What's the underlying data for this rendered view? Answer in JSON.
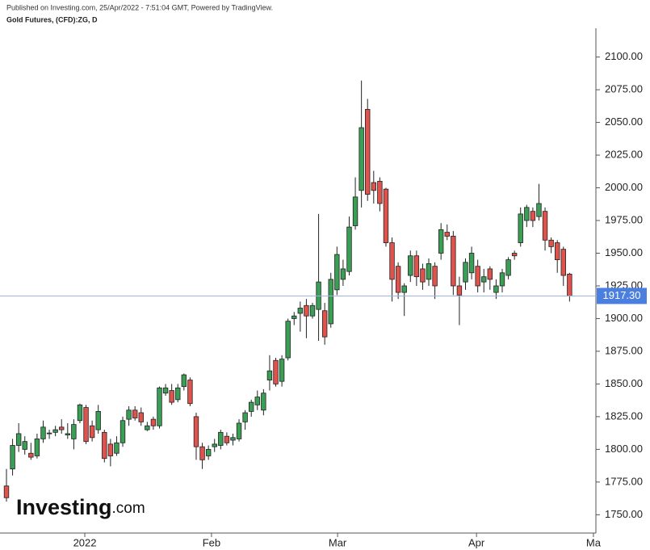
{
  "header": {
    "published": "Published on Investing.com, 25/Apr/2022 - 7:51:04 GMT, Powered by TradingView.",
    "instrument": "Gold Futures, (CFD):ZG, D"
  },
  "logo": {
    "brand": "Investing",
    "suffix": ".com"
  },
  "chart_data": {
    "type": "candlestick",
    "open": [
      1772,
      1785,
      1803,
      1800,
      1797,
      1795,
      1808,
      1812,
      1813,
      1817,
      1811,
      1808,
      1822,
      1832,
      1818,
      1815,
      1813,
      1804,
      1797,
      1805,
      1823,
      1830,
      1828,
      1815,
      1823,
      1818,
      1843,
      1845,
      1838,
      1848,
      1853,
      1825,
      1802,
      1795,
      1802,
      1803,
      1810,
      1807,
      1808,
      1821,
      1829,
      1834,
      1830,
      1853,
      1868,
      1852,
      1870,
      1900,
      1904,
      1910,
      1902,
      1907,
      1906,
      1896,
      1922,
      1930,
      1936,
      1971,
      1998,
      2060,
      2004,
      2005,
      1999,
      1958,
      1940,
      1920,
      1933,
      1948,
      1938,
      1930,
      1940,
      1950,
      1966,
      1963,
      1925,
      1928,
      1935,
      1940,
      1928,
      1938,
      1920,
      1925,
      1933,
      1950,
      1958,
      1975,
      1982,
      1978,
      1982,
      1960,
      1958,
      1953,
      1934
    ],
    "high": [
      1785,
      1808,
      1820,
      1810,
      1805,
      1812,
      1822,
      1815,
      1818,
      1823,
      1820,
      1823,
      1835,
      1834,
      1822,
      1834,
      1815,
      1808,
      1810,
      1825,
      1833,
      1833,
      1832,
      1821,
      1825,
      1848,
      1850,
      1850,
      1850,
      1858,
      1855,
      1828,
      1805,
      1803,
      1808,
      1815,
      1813,
      1812,
      1823,
      1830,
      1838,
      1845,
      1846,
      1872,
      1870,
      1872,
      1900,
      1905,
      1913,
      1915,
      1912,
      1980,
      1912,
      1935,
      1955,
      1945,
      1978,
      2008,
      2082,
      2068,
      2013,
      2008,
      2000,
      1962,
      1943,
      1927,
      1952,
      1952,
      1942,
      1946,
      1943,
      1973,
      1972,
      1967,
      1932,
      1946,
      1955,
      1945,
      1938,
      1940,
      1930,
      1938,
      1947,
      1952,
      1985,
      1987,
      1985,
      2003,
      1985,
      1962,
      1960,
      1955,
      1935
    ],
    "low": [
      1760,
      1780,
      1798,
      1796,
      1792,
      1793,
      1805,
      1808,
      1810,
      1812,
      1808,
      1800,
      1820,
      1804,
      1806,
      1812,
      1790,
      1787,
      1795,
      1802,
      1818,
      1822,
      1818,
      1814,
      1815,
      1816,
      1841,
      1834,
      1836,
      1845,
      1833,
      1792,
      1785,
      1792,
      1798,
      1800,
      1803,
      1803,
      1806,
      1815,
      1825,
      1830,
      1826,
      1845,
      1848,
      1848,
      1868,
      1895,
      1890,
      1885,
      1900,
      1883,
      1880,
      1893,
      1918,
      1925,
      1933,
      1968,
      1985,
      1990,
      1988,
      1982,
      1955,
      1913,
      1915,
      1902,
      1928,
      1925,
      1922,
      1925,
      1915,
      1945,
      1960,
      1918,
      1895,
      1922,
      1930,
      1920,
      1920,
      1922,
      1915,
      1920,
      1930,
      1945,
      1955,
      1970,
      1970,
      1975,
      1952,
      1950,
      1935,
      1925,
      1913
    ],
    "close": [
      1763,
      1803,
      1812,
      1806,
      1794,
      1808,
      1817,
      1812.5,
      1815,
      1815,
      1812,
      1819,
      1834,
      1806,
      1809,
      1829,
      1793,
      1795,
      1805,
      1822,
      1830,
      1824,
      1821,
      1818,
      1818,
      1847,
      1847,
      1836,
      1847,
      1857,
      1835,
      1802,
      1792,
      1800,
      1804,
      1813,
      1805,
      1809,
      1820,
      1828,
      1836,
      1840,
      1843,
      1860,
      1850,
      1869,
      1898,
      1902,
      1908,
      1902,
      1910,
      1928,
      1886,
      1930,
      1949,
      1938,
      1970,
      1993,
      2046,
      1995,
      1998,
      1988,
      1958,
      1930,
      1920,
      1925,
      1948,
      1932,
      1928,
      1942,
      1925,
      1968,
      1963,
      1925,
      1918,
      1943,
      1950,
      1925,
      1932,
      1930,
      1925,
      1935,
      1945,
      1948,
      1980,
      1985,
      1975,
      1988,
      1960,
      1955,
      1945,
      1933,
      1917.3
    ],
    "up_color": "#3a9e55",
    "down_color": "#e0534c",
    "ylim": [
      1736,
      2122
    ],
    "yticks": [
      {
        "value": 1750,
        "label": "1750.00"
      },
      {
        "value": 1775,
        "label": "1775.00"
      },
      {
        "value": 1800,
        "label": "1800.00"
      },
      {
        "value": 1825,
        "label": "1825.00"
      },
      {
        "value": 1850,
        "label": "1850.00"
      },
      {
        "value": 1875,
        "label": "1875.00"
      },
      {
        "value": 1900,
        "label": "1900.00"
      },
      {
        "value": 1925,
        "label": "1925.00"
      },
      {
        "value": 1950,
        "label": "1950.00"
      },
      {
        "value": 1975,
        "label": "1975.00"
      },
      {
        "value": 2000,
        "label": "2000.00"
      },
      {
        "value": 2025,
        "label": "2025.00"
      },
      {
        "value": 2050,
        "label": "2050.00"
      },
      {
        "value": 2075,
        "label": "2075.00"
      },
      {
        "value": 2100,
        "label": "2100.00"
      }
    ],
    "xticks": [
      {
        "value": 12.8,
        "label": "2022"
      },
      {
        "value": 33.5,
        "label": "Feb"
      },
      {
        "value": 54.1,
        "label": "Mar"
      },
      {
        "value": 76.8,
        "label": "Apr"
      },
      {
        "value": 95.9,
        "label": "Ma"
      }
    ],
    "last_price": {
      "value": 1917.3,
      "label": "1917.30"
    }
  }
}
